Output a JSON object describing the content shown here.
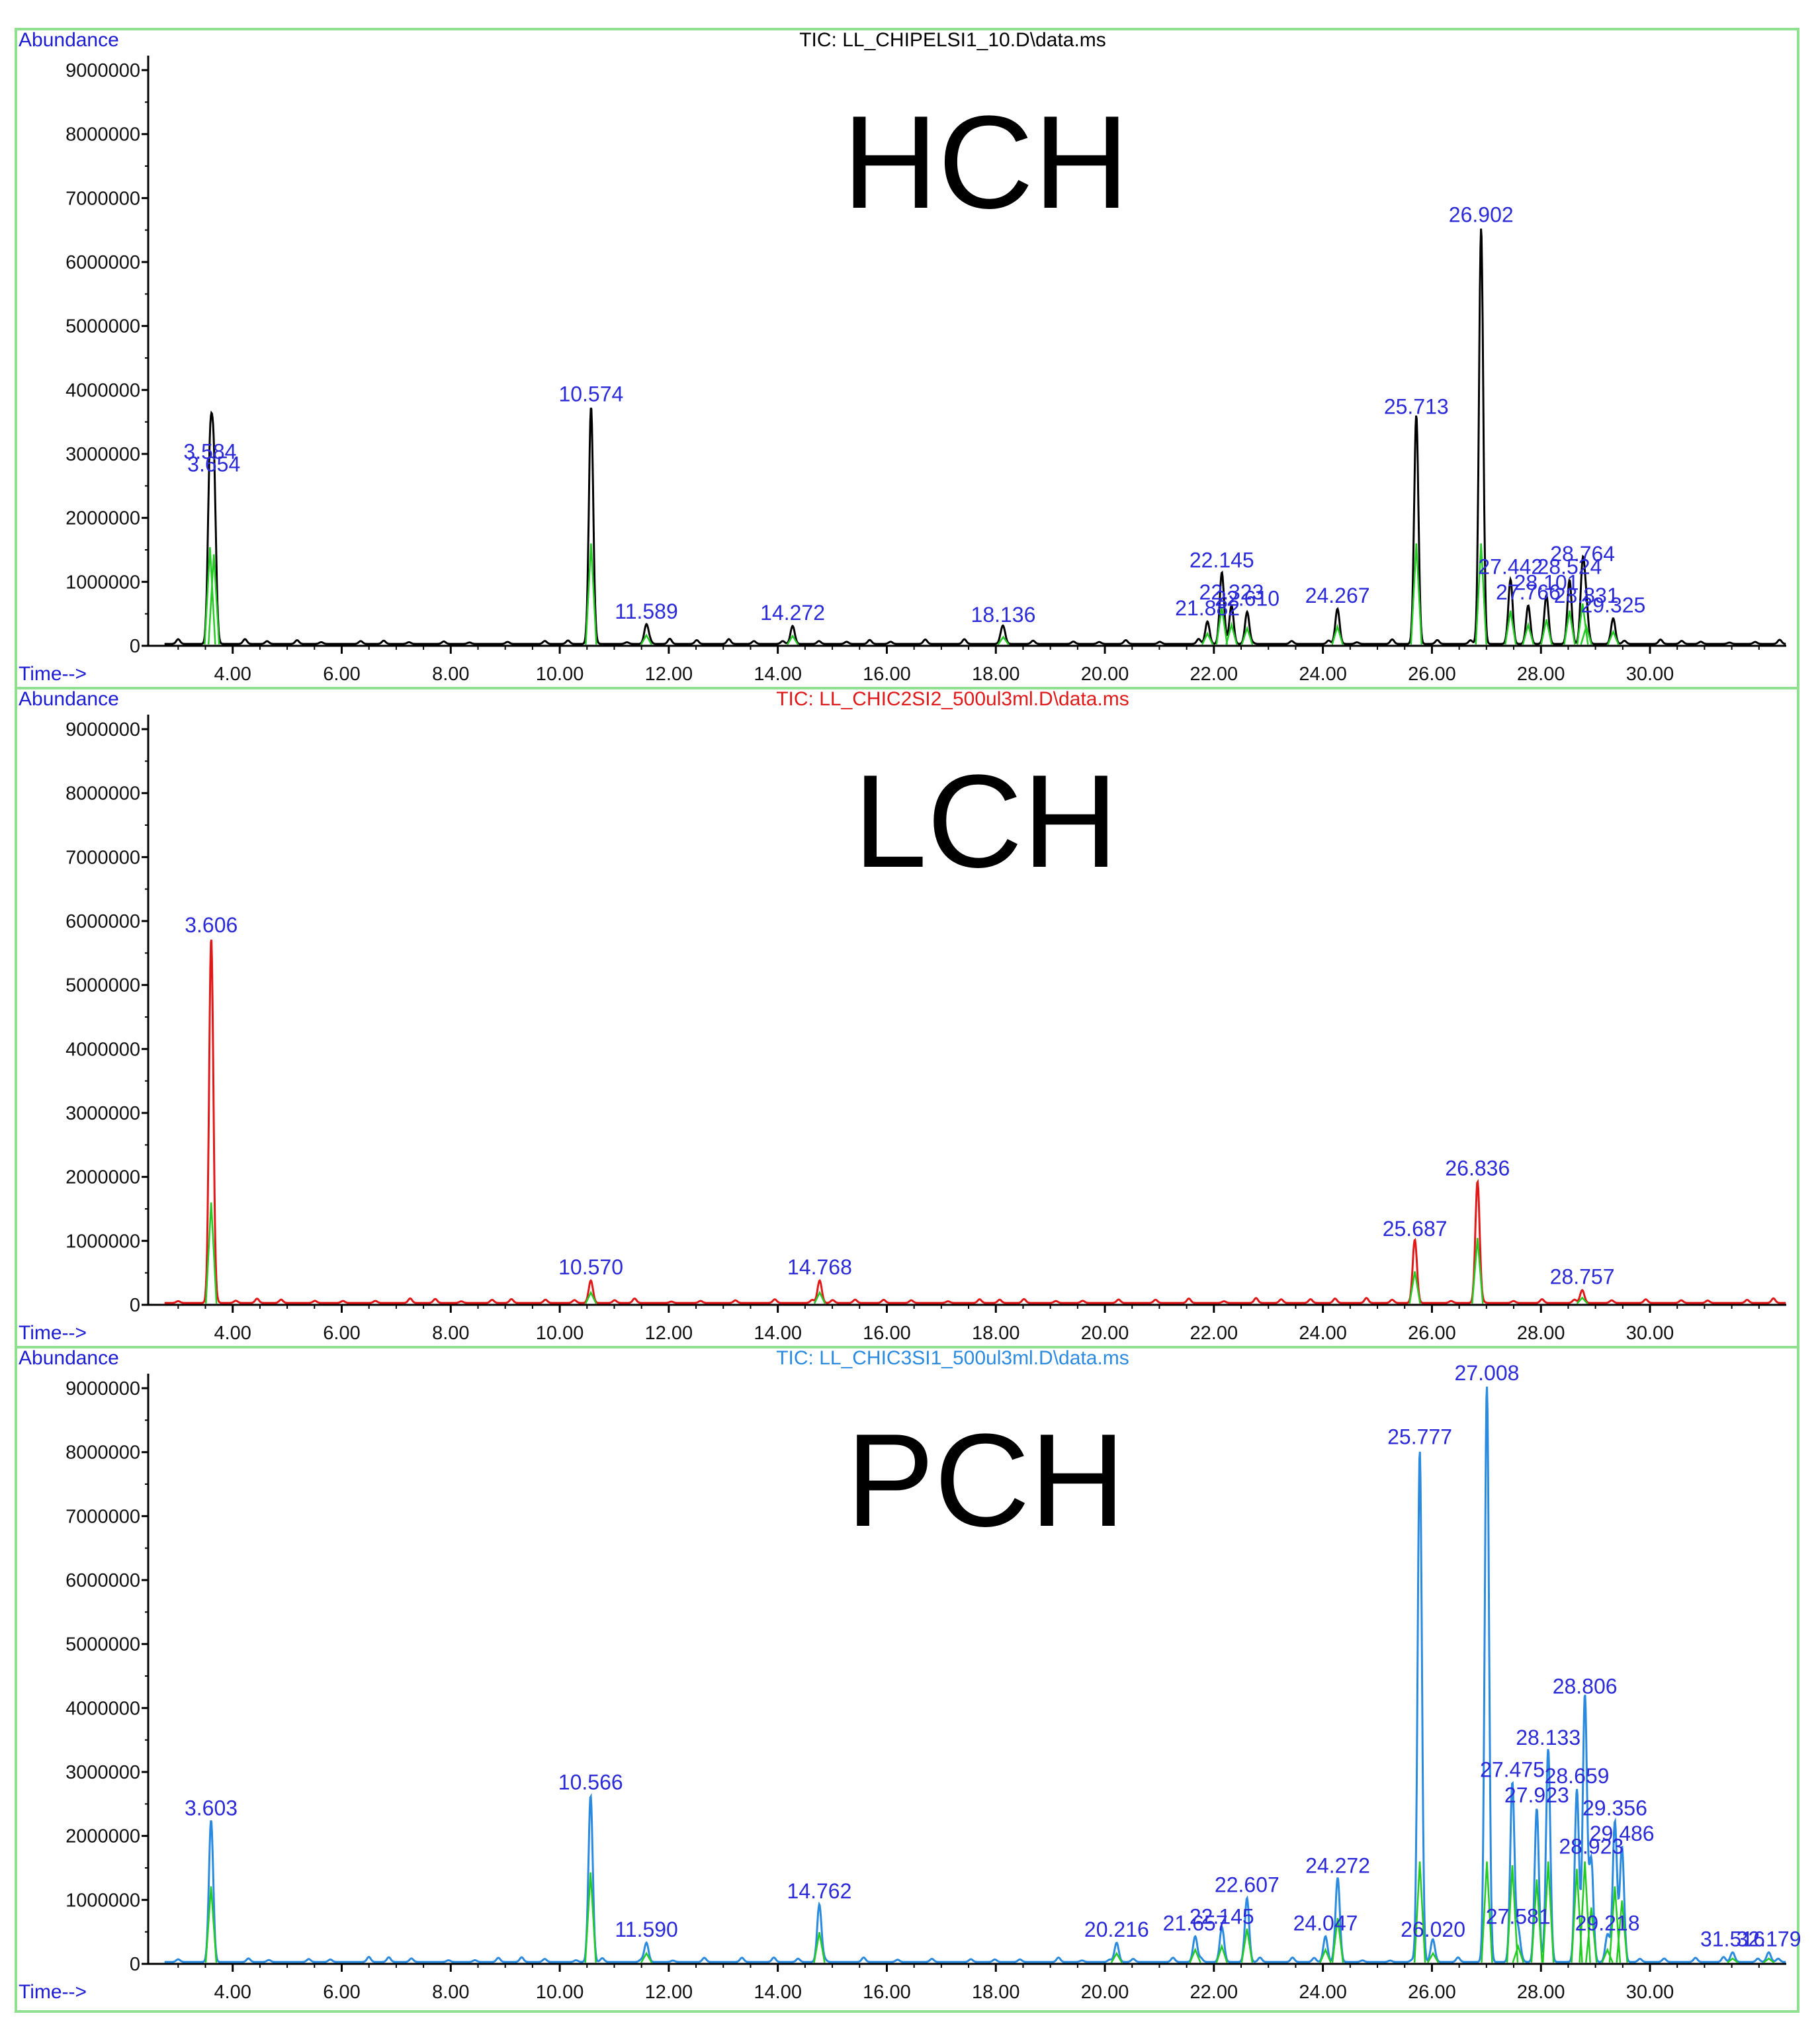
{
  "colors": {
    "frame": "#8fe08f",
    "axis": "#000000",
    "blue_text": "#1c1cd4",
    "peak_label": "#2a2ad8",
    "integration": "#22cc22"
  },
  "shared_axes": {
    "y_tick_labels": [
      "0",
      "1000000",
      "2000000",
      "3000000",
      "4000000",
      "5000000",
      "6000000",
      "7000000",
      "8000000",
      "9000000"
    ],
    "x_tick_labels": [
      "4.00",
      "6.00",
      "8.00",
      "10.00",
      "12.00",
      "14.00",
      "16.00",
      "18.00",
      "20.00",
      "22.00",
      "24.00",
      "26.00",
      "28.00",
      "30.00"
    ],
    "ylabel": "Abundance",
    "xlabel": "Time-->"
  },
  "chart_data": [
    {
      "type": "line",
      "title": "TIC: LL_CHIPELSI1_10.D\\data.ms",
      "label": "HCH",
      "series_color": "#000000",
      "title_color": "#000000",
      "xlim": [
        2.45,
        32.5
      ],
      "ylim": [
        0,
        9000000
      ],
      "ylabel": "Abundance",
      "xlabel": "Time-->",
      "peaks": [
        {
          "x": 3.584,
          "y": 2800000,
          "label": "3.584"
        },
        {
          "x": 3.654,
          "y": 2600000,
          "label": "3.654"
        },
        {
          "x": 10.574,
          "y": 3700000,
          "label": "10.574"
        },
        {
          "x": 11.589,
          "y": 300000,
          "label": "11.589"
        },
        {
          "x": 14.272,
          "y": 280000,
          "label": "14.272"
        },
        {
          "x": 18.136,
          "y": 250000,
          "label": "18.136"
        },
        {
          "x": 21.882,
          "y": 350000,
          "label": "21.882"
        },
        {
          "x": 22.145,
          "y": 1100000,
          "label": "22.145"
        },
        {
          "x": 22.323,
          "y": 600000,
          "label": "22.323"
        },
        {
          "x": 22.61,
          "y": 500000,
          "label": "22.610"
        },
        {
          "x": 24.267,
          "y": 550000,
          "label": "24.267"
        },
        {
          "x": 25.713,
          "y": 3500000,
          "label": "25.713"
        },
        {
          "x": 26.902,
          "y": 6500000,
          "label": "26.902"
        },
        {
          "x": 27.442,
          "y": 1000000,
          "label": "27.442"
        },
        {
          "x": 27.766,
          "y": 600000,
          "label": "27.766"
        },
        {
          "x": 28.101,
          "y": 750000,
          "label": "28.101"
        },
        {
          "x": 28.524,
          "y": 1000000,
          "label": "28.524"
        },
        {
          "x": 28.764,
          "y": 1200000,
          "label": "28.764"
        },
        {
          "x": 28.831,
          "y": 550000,
          "label": "28.831"
        },
        {
          "x": 29.325,
          "y": 400000,
          "label": "29.325"
        }
      ]
    },
    {
      "type": "line",
      "title": "TIC: LL_CHIC2SI2_500ul3ml.D\\data.ms",
      "label": "LCH",
      "series_color": "#e01818",
      "title_color": "#e01818",
      "xlim": [
        2.45,
        32.5
      ],
      "ylim": [
        0,
        9000000
      ],
      "ylabel": "Abundance",
      "xlabel": "Time-->",
      "peaks": [
        {
          "x": 3.606,
          "y": 5700000,
          "label": "3.606"
        },
        {
          "x": 10.57,
          "y": 350000,
          "label": "10.570"
        },
        {
          "x": 14.768,
          "y": 350000,
          "label": "14.768"
        },
        {
          "x": 25.687,
          "y": 950000,
          "label": "25.687"
        },
        {
          "x": 26.836,
          "y": 1900000,
          "label": "26.836"
        },
        {
          "x": 28.757,
          "y": 200000,
          "label": "28.757"
        }
      ]
    },
    {
      "type": "line",
      "title": "TIC: LL_CHIC3SI1_500ul3ml.D\\data.ms",
      "label": "PCH",
      "series_color": "#2a8ae0",
      "title_color": "#2a8ae0",
      "xlim": [
        2.45,
        32.5
      ],
      "ylim": [
        0,
        9000000
      ],
      "ylabel": "Abundance",
      "xlabel": "Time-->",
      "peaks": [
        {
          "x": 3.603,
          "y": 2200000,
          "label": "3.603"
        },
        {
          "x": 10.566,
          "y": 2600000,
          "label": "10.566"
        },
        {
          "x": 11.59,
          "y": 300000,
          "label": "11.590"
        },
        {
          "x": 14.762,
          "y": 900000,
          "label": "14.762"
        },
        {
          "x": 20.216,
          "y": 300000,
          "label": "20.216"
        },
        {
          "x": 21.657,
          "y": 400000,
          "label": "21.657"
        },
        {
          "x": 22.145,
          "y": 500000,
          "label": "22.145"
        },
        {
          "x": 22.607,
          "y": 1000000,
          "label": "22.607"
        },
        {
          "x": 24.047,
          "y": 400000,
          "label": "24.047"
        },
        {
          "x": 24.272,
          "y": 1300000,
          "label": "24.272"
        },
        {
          "x": 25.777,
          "y": 8000000,
          "label": "25.777"
        },
        {
          "x": 26.02,
          "y": 300000,
          "label": "26.020"
        },
        {
          "x": 27.008,
          "y": 9000000,
          "label": "27.008"
        },
        {
          "x": 27.475,
          "y": 2800000,
          "label": "27.475"
        },
        {
          "x": 27.581,
          "y": 500000,
          "label": "27.581"
        },
        {
          "x": 27.923,
          "y": 2400000,
          "label": "27.923"
        },
        {
          "x": 28.133,
          "y": 3300000,
          "label": "28.133"
        },
        {
          "x": 28.659,
          "y": 2700000,
          "label": "28.659"
        },
        {
          "x": 28.806,
          "y": 4100000,
          "label": "28.806"
        },
        {
          "x": 28.923,
          "y": 1600000,
          "label": "28.923"
        },
        {
          "x": 29.218,
          "y": 400000,
          "label": "29.218"
        },
        {
          "x": 29.356,
          "y": 2200000,
          "label": "29.356"
        },
        {
          "x": 29.486,
          "y": 1800000,
          "label": "29.486"
        },
        {
          "x": 31.516,
          "y": 150000,
          "label": "31.516"
        },
        {
          "x": 32.179,
          "y": 150000,
          "label": "32.179"
        }
      ]
    }
  ]
}
